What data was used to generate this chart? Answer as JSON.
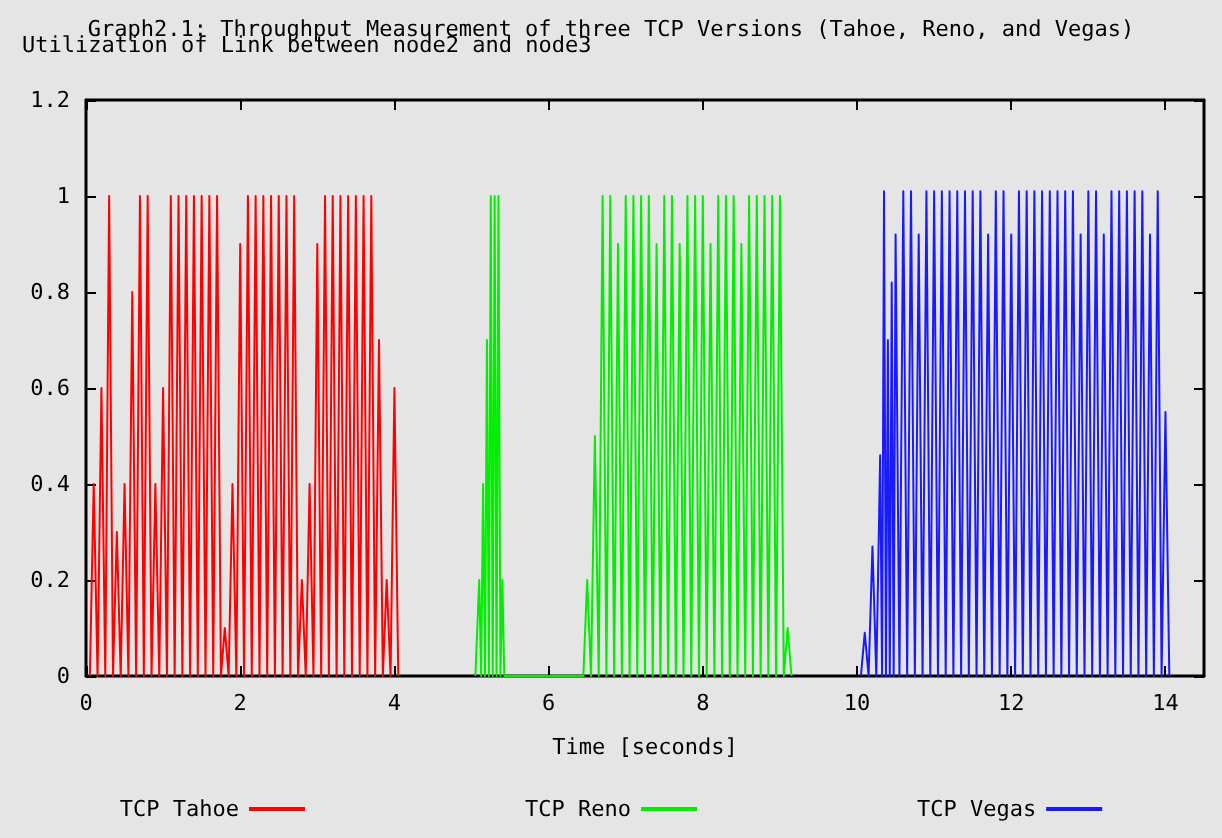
{
  "chart_data": {
    "type": "line",
    "title": "Graph2.1: Throughput Measurement of three TCP Versions (Tahoe, Reno, and Vegas)",
    "ylabel": "Utilization of Link between node2 and node3",
    "xlabel": "Time [seconds]",
    "xlim": [
      0,
      14.5
    ],
    "xticks": [
      0,
      2,
      4,
      6,
      8,
      10,
      12,
      14
    ],
    "ylim": [
      0,
      1.2
    ],
    "yticks": [
      0,
      0.2,
      0.4,
      0.6,
      0.8,
      1,
      1.2
    ],
    "legend": "bottom",
    "marker": "none",
    "line_style": "solid",
    "series": [
      {
        "name": "TCP Tahoe",
        "color": "#ff0000",
        "x": [
          0.05,
          0.1,
          0.15,
          0.2,
          0.25,
          0.3,
          0.35,
          0.4,
          0.45,
          0.5,
          0.55,
          0.6,
          0.65,
          0.7,
          0.75,
          0.8,
          0.85,
          0.9,
          0.95,
          1.0,
          1.05,
          1.1,
          1.15,
          1.2,
          1.25,
          1.3,
          1.35,
          1.4,
          1.45,
          1.5,
          1.55,
          1.6,
          1.65,
          1.7,
          1.75,
          1.8,
          1.85,
          1.9,
          1.95,
          2.0,
          2.05,
          2.1,
          2.15,
          2.2,
          2.25,
          2.3,
          2.35,
          2.4,
          2.45,
          2.5,
          2.55,
          2.6,
          2.65,
          2.7,
          2.75,
          2.8,
          2.85,
          2.9,
          2.95,
          3.0,
          3.05,
          3.1,
          3.15,
          3.2,
          3.25,
          3.3,
          3.35,
          3.4,
          3.45,
          3.5,
          3.55,
          3.6,
          3.65,
          3.7,
          3.75,
          3.8,
          3.85,
          3.9,
          3.95,
          4.0,
          4.05
        ],
        "values": [
          0,
          0.4,
          0,
          0.6,
          0,
          1,
          0,
          0.3,
          0,
          0.4,
          0,
          0.8,
          0,
          1,
          0,
          1,
          0,
          0.4,
          0,
          0.6,
          0,
          1,
          0,
          1,
          0,
          1,
          0,
          1,
          0,
          1,
          0,
          1,
          0,
          1,
          0,
          0.1,
          0,
          0.4,
          0,
          0.9,
          0,
          1,
          0,
          1,
          0,
          1,
          0,
          1,
          0,
          1,
          0,
          1,
          0,
          1,
          0,
          0.2,
          0,
          0.4,
          0,
          0.9,
          0,
          1,
          0,
          1,
          0,
          1,
          0,
          1,
          0,
          1,
          0,
          1,
          0,
          1,
          0,
          0.7,
          0,
          0.2,
          0,
          0.6,
          0
        ]
      },
      {
        "name": "TCP Reno",
        "color": "#00ee00",
        "x": [
          5.05,
          5.1,
          5.125,
          5.15,
          5.175,
          5.2,
          5.225,
          5.25,
          5.275,
          5.3,
          5.325,
          5.35,
          5.375,
          5.4,
          5.425,
          6.45,
          6.5,
          6.55,
          6.6,
          6.65,
          6.7,
          6.75,
          6.8,
          6.85,
          6.9,
          6.95,
          7.0,
          7.05,
          7.1,
          7.15,
          7.2,
          7.25,
          7.3,
          7.35,
          7.4,
          7.45,
          7.5,
          7.55,
          7.6,
          7.65,
          7.7,
          7.75,
          7.8,
          7.85,
          7.9,
          7.95,
          8.0,
          8.05,
          8.1,
          8.15,
          8.2,
          8.25,
          8.3,
          8.35,
          8.4,
          8.45,
          8.5,
          8.55,
          8.6,
          8.65,
          8.7,
          8.75,
          8.8,
          8.85,
          8.9,
          8.95,
          9.0,
          9.05,
          9.1,
          9.15
        ],
        "values": [
          0,
          0.2,
          0,
          0.4,
          0,
          0.7,
          0,
          1,
          0,
          1,
          0,
          1,
          0,
          0.2,
          0,
          0,
          0.2,
          0,
          0.5,
          0,
          1,
          0,
          1,
          0,
          0.9,
          0,
          1,
          0,
          1,
          0,
          1,
          0,
          1,
          0,
          0.9,
          0,
          1,
          0,
          1,
          0,
          0.9,
          0,
          1,
          0,
          1,
          0,
          1,
          0,
          0.9,
          0,
          1,
          0,
          1,
          0,
          1,
          0,
          0.9,
          0,
          1,
          0,
          1,
          0,
          1,
          0,
          1,
          0,
          1,
          0,
          0.1,
          0
        ]
      },
      {
        "name": "TCP Vegas",
        "color": "#1a1aff",
        "x": [
          10.05,
          10.1,
          10.15,
          10.2,
          10.25,
          10.3,
          10.325,
          10.35,
          10.375,
          10.4,
          10.425,
          10.45,
          10.475,
          10.5,
          10.55,
          10.6,
          10.65,
          10.7,
          10.75,
          10.8,
          10.85,
          10.9,
          10.95,
          11.0,
          11.05,
          11.1,
          11.15,
          11.2,
          11.25,
          11.3,
          11.35,
          11.4,
          11.45,
          11.5,
          11.55,
          11.6,
          11.65,
          11.7,
          11.75,
          11.8,
          11.85,
          11.9,
          11.95,
          12.0,
          12.05,
          12.1,
          12.15,
          12.2,
          12.25,
          12.3,
          12.35,
          12.4,
          12.45,
          12.5,
          12.55,
          12.6,
          12.65,
          12.7,
          12.75,
          12.8,
          12.85,
          12.9,
          12.95,
          13.0,
          13.05,
          13.1,
          13.15,
          13.2,
          13.25,
          13.3,
          13.35,
          13.4,
          13.45,
          13.5,
          13.55,
          13.6,
          13.65,
          13.7,
          13.75,
          13.8,
          13.85,
          13.9,
          13.95,
          14.0,
          14.05
        ],
        "values": [
          0,
          0.09,
          0,
          0.27,
          0,
          0.46,
          0,
          1.01,
          0,
          0.7,
          0,
          0.82,
          0,
          0.92,
          0,
          1.01,
          0,
          1.01,
          0,
          0.92,
          0,
          1.01,
          0,
          1.01,
          0,
          1.01,
          0,
          1.01,
          0,
          1.01,
          0,
          1.01,
          0,
          1.01,
          0,
          1.01,
          0,
          0.92,
          0,
          1.01,
          0,
          1.01,
          0,
          0.92,
          0,
          1.01,
          0,
          1.01,
          0,
          1.01,
          0,
          1.01,
          0,
          1.01,
          0,
          1.01,
          0,
          1.01,
          0,
          1.01,
          0,
          0.92,
          0,
          1.01,
          0,
          1.01,
          0,
          0.92,
          0,
          1.01,
          0,
          1.01,
          0,
          1.01,
          0,
          1.01,
          0,
          1.01,
          0,
          0.92,
          0,
          1.01,
          0,
          0.55,
          0
        ]
      }
    ]
  }
}
